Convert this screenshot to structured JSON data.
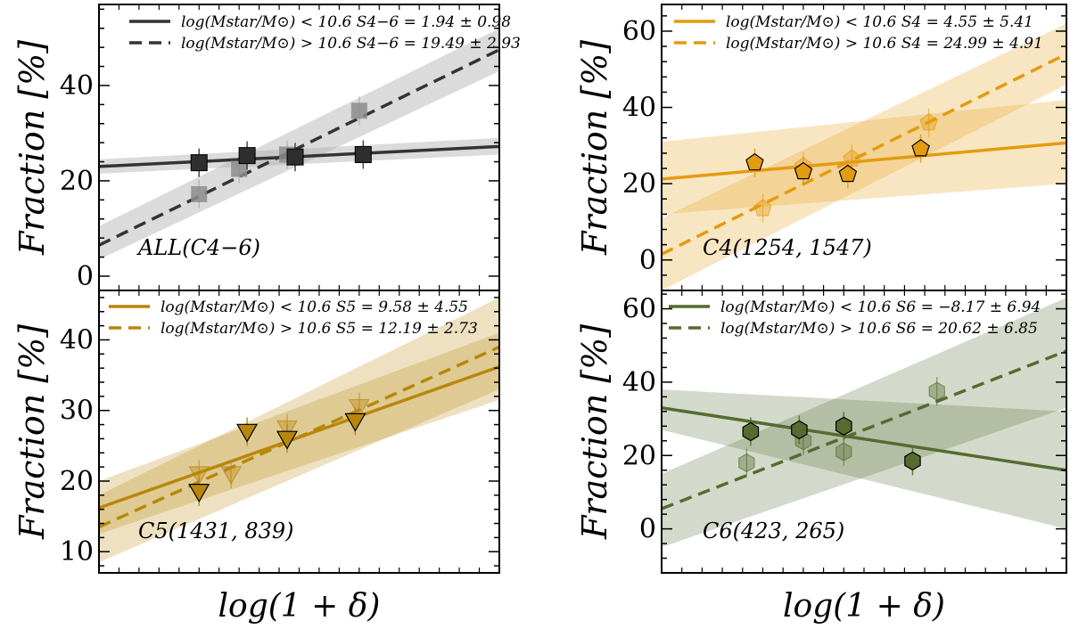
{
  "chart_data": [
    {
      "type": "scatter",
      "panel_label": "ALL(C4−6)",
      "ylabel": "Fraction [%]",
      "xlabel": "",
      "ylim": [
        -3,
        57
      ],
      "yticks": [
        0,
        20,
        40
      ],
      "xlim": [
        -0.35,
        0.65
      ],
      "color": "#333333",
      "marker": "square",
      "series": [
        {
          "name": "low_mass",
          "legend": "log(Mstar/M⊙) < 10.6 S4−6 = 1.94 ± 0.98",
          "line_style": "solid",
          "x": [
            -0.1,
            0.02,
            0.14,
            0.31
          ],
          "y": [
            23.8,
            25.3,
            25.0,
            25.5
          ],
          "fit": {
            "x0": -0.35,
            "y0": 23.0,
            "x1": 0.65,
            "y1": 27.2
          },
          "band": {
            "low0": 21.5,
            "high0": 24.5,
            "low1": 25.5,
            "high1": 29.0
          }
        },
        {
          "name": "high_mass",
          "legend": "log(Mstar/M⊙) > 10.6 S4−6 = 19.49 ± 2.93",
          "line_style": "dashed",
          "x": [
            -0.1,
            0.0,
            0.12,
            0.3
          ],
          "y": [
            17.2,
            22.5,
            25.5,
            34.7
          ],
          "fit": {
            "x0": -0.35,
            "y0": 6.5,
            "x1": 0.65,
            "y1": 47.5
          },
          "band": {
            "low0": 3.5,
            "high0": 10.5,
            "low1": 43.0,
            "high1": 52.0
          }
        }
      ]
    },
    {
      "type": "scatter",
      "panel_label": "C4(1254, 1547)",
      "ylabel": "Fraction [%]",
      "xlabel": "",
      "ylim": [
        -8,
        67
      ],
      "yticks": [
        0,
        20,
        40,
        60
      ],
      "xlim": [
        -0.35,
        0.65
      ],
      "color": "#e39b0f",
      "marker": "pentagon",
      "series": [
        {
          "name": "low_mass",
          "legend": "log(Mstar/M⊙) < 10.6 S4 = 4.55 ± 5.41",
          "line_style": "solid",
          "x": [
            -0.12,
            0.0,
            0.11,
            0.29
          ],
          "y": [
            25.5,
            23.2,
            22.5,
            29.2
          ],
          "fit": {
            "x0": -0.35,
            "y0": 21.2,
            "x1": 0.65,
            "y1": 30.7
          },
          "band": {
            "low0": 12.0,
            "high0": 31.0,
            "low1": 20.0,
            "high1": 42.0
          }
        },
        {
          "name": "high_mass",
          "legend": "log(Mstar/M⊙) > 10.6 S4 = 24.99 ± 4.91",
          "line_style": "dashed",
          "x": [
            -0.1,
            0.0,
            0.12,
            0.31
          ],
          "y": [
            13.5,
            24.5,
            26.5,
            36.0
          ],
          "fit": {
            "x0": -0.35,
            "y0": 1.5,
            "x1": 0.65,
            "y1": 54.0
          },
          "band": {
            "low0": -8.0,
            "high0": 11.0,
            "low1": 46.0,
            "high1": 62.0
          }
        }
      ]
    },
    {
      "type": "scatter",
      "panel_label": "C5(1431, 839)",
      "ylabel": "Fraction [%]",
      "xlabel": "log(1 + δ)",
      "ylim": [
        7,
        47
      ],
      "yticks": [
        10,
        20,
        30,
        40
      ],
      "xlim": [
        -0.35,
        0.65
      ],
      "color": "#b8860b",
      "marker": "triangle-down",
      "series": [
        {
          "name": "low_mass",
          "legend": "log(Mstar/M⊙) < 10.6 S5 = 9.58 ± 4.55",
          "line_style": "solid",
          "x": [
            -0.1,
            0.02,
            0.12,
            0.29
          ],
          "y": [
            18.5,
            27.0,
            26.0,
            28.5
          ],
          "fit": {
            "x0": -0.35,
            "y0": 16.2,
            "x1": 0.65,
            "y1": 36.2
          },
          "band": {
            "low0": 12.5,
            "high0": 20.0,
            "low1": 31.5,
            "high1": 41.0
          }
        },
        {
          "name": "high_mass",
          "legend": "log(Mstar/M⊙) > 10.6 S5 = 12.19 ± 2.73",
          "line_style": "dashed",
          "x": [
            -0.1,
            -0.02,
            0.12,
            0.3
          ],
          "y": [
            21.0,
            21.0,
            27.5,
            30.5
          ],
          "fit": {
            "x0": -0.35,
            "y0": 13.5,
            "x1": 0.65,
            "y1": 39.0
          },
          "band": {
            "low0": 8.5,
            "high0": 18.0,
            "low1": 33.0,
            "high1": 46.0
          }
        }
      ]
    },
    {
      "type": "scatter",
      "panel_label": "C6(423, 265)",
      "ylabel": "Fraction [%]",
      "xlabel": "log(1 + δ)",
      "ylim": [
        -12,
        65
      ],
      "yticks": [
        0,
        20,
        40,
        60
      ],
      "xlim": [
        -0.35,
        0.65
      ],
      "color": "#556b2f",
      "marker": "hexagon",
      "series": [
        {
          "name": "low_mass",
          "legend": "log(Mstar/M⊙) < 10.6 S6 = −8.17 ± 6.94",
          "line_style": "solid",
          "x": [
            -0.13,
            -0.01,
            0.1,
            0.27
          ],
          "y": [
            26.5,
            27.0,
            28.0,
            18.5
          ],
          "fit": {
            "x0": -0.35,
            "y0": 33.0,
            "x1": 0.65,
            "y1": 16.0
          },
          "band": {
            "low0": 27.0,
            "high0": 38.0,
            "low1": 0.0,
            "high1": 32.0
          }
        },
        {
          "name": "high_mass",
          "legend": "log(Mstar/M⊙) > 10.6 S6 = 20.62 ± 6.85",
          "line_style": "dashed",
          "x": [
            -0.14,
            0.0,
            0.1,
            0.33
          ],
          "y": [
            18.0,
            24.0,
            21.0,
            37.5
          ],
          "fit": {
            "x0": -0.35,
            "y0": 5.5,
            "x1": 0.65,
            "y1": 48.5
          },
          "band": {
            "low0": -5.0,
            "high0": 15.0,
            "low1": 33.0,
            "high1": 63.0
          }
        }
      ]
    }
  ]
}
